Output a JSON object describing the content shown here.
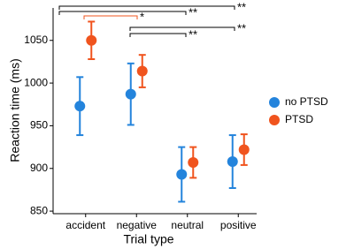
{
  "chart_data": {
    "type": "errorbar",
    "x_label": "Trial type",
    "y_label": "Reaction time (ms)",
    "categories": [
      "accident",
      "negative",
      "neutral",
      "positive"
    ],
    "series": [
      {
        "name": "no PTSD",
        "color": "#2484dc",
        "values": [
          973,
          987,
          893,
          908
        ],
        "errors": [
          34,
          36,
          32,
          31
        ]
      },
      {
        "name": "PTSD",
        "color": "#f0541e",
        "values": [
          1050,
          1014,
          907,
          922
        ],
        "errors": [
          22,
          19,
          18,
          18
        ]
      }
    ],
    "ylim": [
      847,
      1088
    ],
    "yticks": [
      850,
      900,
      950,
      1000,
      1050
    ],
    "legend": "right",
    "annotations": [
      {
        "text": "**",
        "color": "#000000"
      },
      {
        "text": "**",
        "color": "#000000"
      },
      {
        "text": "*",
        "color": "#f0541e"
      },
      {
        "text": "**",
        "color": "#000000"
      },
      {
        "text": "**",
        "color": "#000000"
      }
    ]
  }
}
